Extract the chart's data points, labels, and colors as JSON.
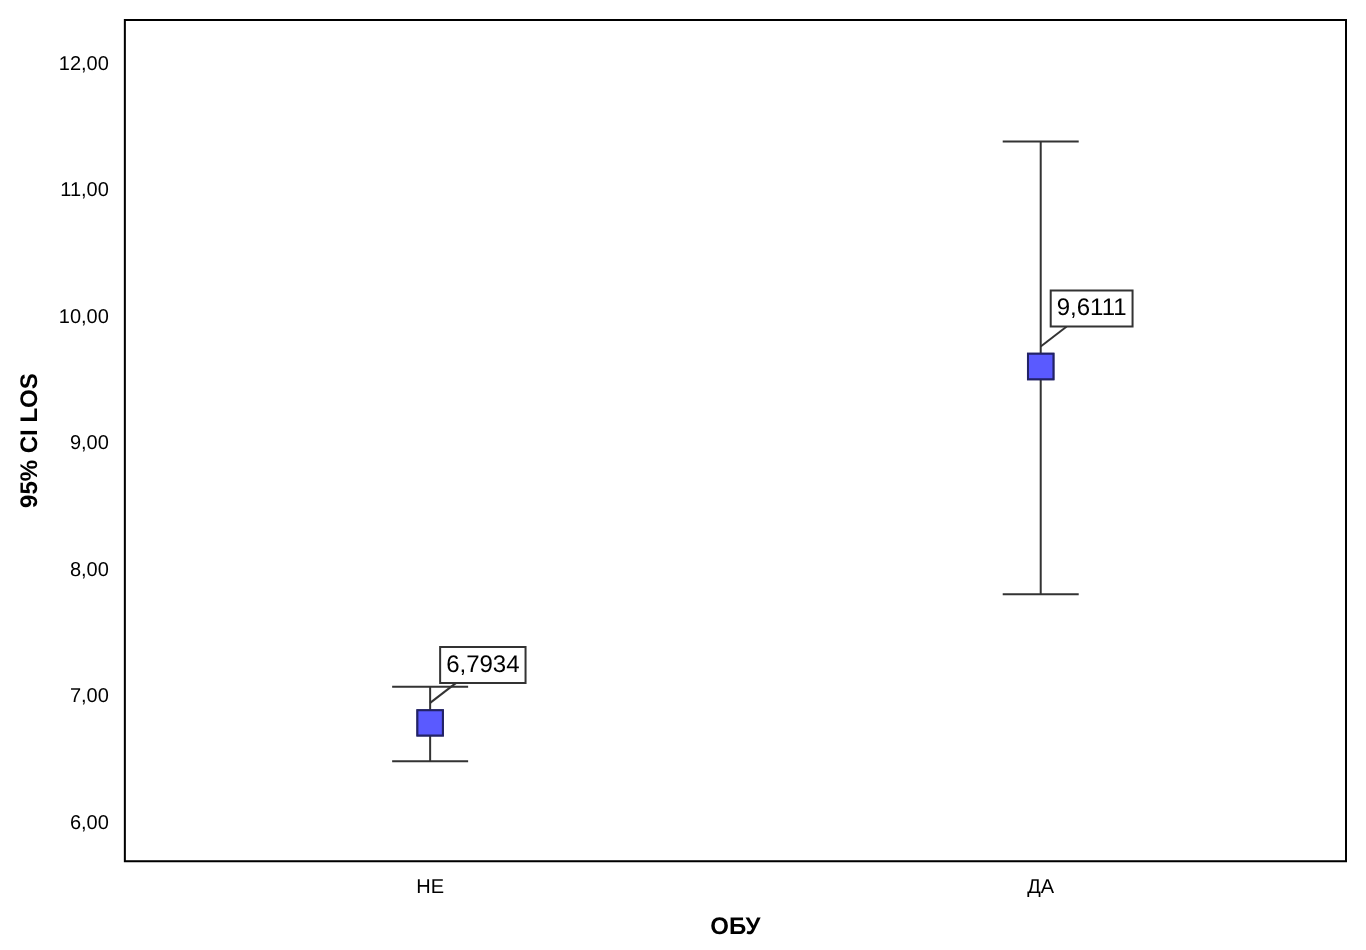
{
  "chart_data": {
    "type": "scatter",
    "xlabel": "ОБУ",
    "ylabel": "95% CI LOS",
    "categories": [
      "НЕ",
      "ДА"
    ],
    "values": [
      6.7934,
      9.6111
    ],
    "errors": [
      [
        6.49,
        7.08
      ],
      [
        7.81,
        11.39
      ]
    ],
    "value_labels": [
      "6,7934",
      "9,6111"
    ],
    "color": "#5a5aff",
    "marker": "square",
    "ylim": [
      5.7,
      12.35
    ],
    "yticks": [
      {
        "value": 6,
        "label": "6,00"
      },
      {
        "value": 7,
        "label": "7,00"
      },
      {
        "value": 8,
        "label": "8,00"
      },
      {
        "value": 9,
        "label": "9,00"
      },
      {
        "value": 10,
        "label": "10,00"
      },
      {
        "value": 11,
        "label": "11,00"
      },
      {
        "value": 12,
        "label": "12,00"
      }
    ],
    "grid": false,
    "legend": false
  }
}
